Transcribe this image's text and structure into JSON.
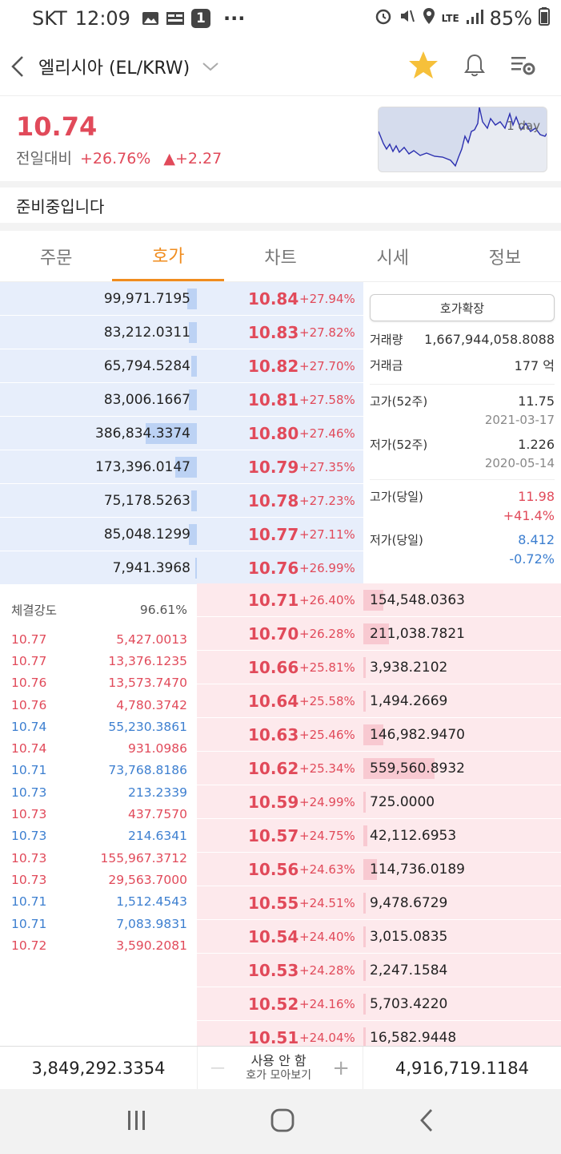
{
  "status_bar": {
    "carrier": "SKT",
    "time": "12:09",
    "notif_badge": "1",
    "dots": "···",
    "battery": "85%",
    "net": "LTE"
  },
  "header": {
    "title": "엘리시아 (EL/KRW)"
  },
  "price": {
    "current": "10.74",
    "change_label": "전일대비",
    "change_pct": "+26.76%",
    "change_abs": "▲+2.27",
    "chart_label": "1 day"
  },
  "notice": "준비중입니다",
  "tabs": [
    {
      "label": "주문"
    },
    {
      "label": "호가"
    },
    {
      "label": "차트"
    },
    {
      "label": "시세"
    },
    {
      "label": "정보"
    }
  ],
  "asks": [
    {
      "vol": "99,971.7195",
      "price": "10.84",
      "pct": "+27.94%",
      "fill": 0.05
    },
    {
      "vol": "83,212.0311",
      "price": "10.83",
      "pct": "+27.82%",
      "fill": 0.04
    },
    {
      "vol": "65,794.5284",
      "price": "10.82",
      "pct": "+27.70%",
      "fill": 0.03
    },
    {
      "vol": "83,006.1667",
      "price": "10.81",
      "pct": "+27.58%",
      "fill": 0.04
    },
    {
      "vol": "386,834.3374",
      "price": "10.80",
      "pct": "+27.46%",
      "fill": 0.26
    },
    {
      "vol": "173,396.0147",
      "price": "10.79",
      "pct": "+27.35%",
      "fill": 0.11
    },
    {
      "vol": "75,178.5263",
      "price": "10.78",
      "pct": "+27.23%",
      "fill": 0.03
    },
    {
      "vol": "85,048.1299",
      "price": "10.77",
      "pct": "+27.11%",
      "fill": 0.04
    },
    {
      "vol": "7,941.3968",
      "price": "10.76",
      "pct": "+26.99%",
      "fill": 0.01
    }
  ],
  "bids": [
    {
      "price": "10.71",
      "pct": "+26.40%",
      "vol": "154,548.0363",
      "fill": 0.1
    },
    {
      "price": "10.70",
      "pct": "+26.28%",
      "vol": "211,038.7821",
      "fill": 0.13
    },
    {
      "price": "10.66",
      "pct": "+25.81%",
      "vol": "3,938.2102",
      "fill": 0.0
    },
    {
      "price": "10.64",
      "pct": "+25.58%",
      "vol": "1,494.2669",
      "fill": 0.0
    },
    {
      "price": "10.63",
      "pct": "+25.46%",
      "vol": "146,982.9470",
      "fill": 0.1
    },
    {
      "price": "10.62",
      "pct": "+25.34%",
      "vol": "559,560.8932",
      "fill": 0.36
    },
    {
      "price": "10.59",
      "pct": "+24.99%",
      "vol": "725.0000",
      "fill": 0.0
    },
    {
      "price": "10.57",
      "pct": "+24.75%",
      "vol": "42,112.6953",
      "fill": 0.02
    },
    {
      "price": "10.56",
      "pct": "+24.63%",
      "vol": "114,736.0189",
      "fill": 0.07
    },
    {
      "price": "10.55",
      "pct": "+24.51%",
      "vol": "9,478.6729",
      "fill": 0.0
    },
    {
      "price": "10.54",
      "pct": "+24.40%",
      "vol": "3,015.0835",
      "fill": 0.0
    },
    {
      "price": "10.53",
      "pct": "+24.28%",
      "vol": "2,247.1584",
      "fill": 0.0
    },
    {
      "price": "10.52",
      "pct": "+24.16%",
      "vol": "5,703.4220",
      "fill": 0.0
    },
    {
      "price": "10.51",
      "pct": "+24.04%",
      "vol": "16,582.9448",
      "fill": 0.01
    }
  ],
  "info": {
    "expand_label": "호가확장",
    "volume_label": "거래량",
    "volume": "1,667,944,058.8088",
    "amount_label": "거래금",
    "amount": "177 억",
    "high52_label": "고가(52주)",
    "high52": "11.75",
    "high52_date": "2021-03-17",
    "low52_label": "저가(52주)",
    "low52": "1.226",
    "low52_date": "2020-05-14",
    "high_day_label": "고가(당일)",
    "high_day": "11.98",
    "high_day_pct": "+41.4%",
    "low_day_label": "저가(당일)",
    "low_day": "8.412",
    "low_day_pct": "-0.72%"
  },
  "trades": {
    "strength_label": "체결강도",
    "strength": "96.61%",
    "rows": [
      {
        "price": "10.77",
        "qty": "5,427.0013",
        "side": "red"
      },
      {
        "price": "10.77",
        "qty": "13,376.1235",
        "side": "red"
      },
      {
        "price": "10.76",
        "qty": "13,573.7470",
        "side": "red"
      },
      {
        "price": "10.76",
        "qty": "4,780.3742",
        "side": "red"
      },
      {
        "price": "10.74",
        "qty": "55,230.3861",
        "side": "blue"
      },
      {
        "price": "10.74",
        "qty": "931.0986",
        "side": "red"
      },
      {
        "price": "10.71",
        "qty": "73,768.8186",
        "side": "blue"
      },
      {
        "price": "10.73",
        "qty": "213.2339",
        "side": "blue"
      },
      {
        "price": "10.73",
        "qty": "437.7570",
        "side": "red"
      },
      {
        "price": "10.73",
        "qty": "214.6341",
        "side": "blue"
      },
      {
        "price": "10.73",
        "qty": "155,967.3712",
        "side": "red"
      },
      {
        "price": "10.73",
        "qty": "29,563.7000",
        "side": "red"
      },
      {
        "price": "10.71",
        "qty": "1,512.4543",
        "side": "blue"
      },
      {
        "price": "10.71",
        "qty": "7,083.9831",
        "side": "blue"
      },
      {
        "price": "10.72",
        "qty": "3,590.2081",
        "side": "red"
      }
    ]
  },
  "bottom": {
    "ask_total": "3,849,292.3354",
    "toggle_label": "사용 안 함",
    "toggle_sub": "호가 모아보기",
    "minus": "—",
    "plus": "+",
    "bid_total": "4,916,719.1184"
  }
}
